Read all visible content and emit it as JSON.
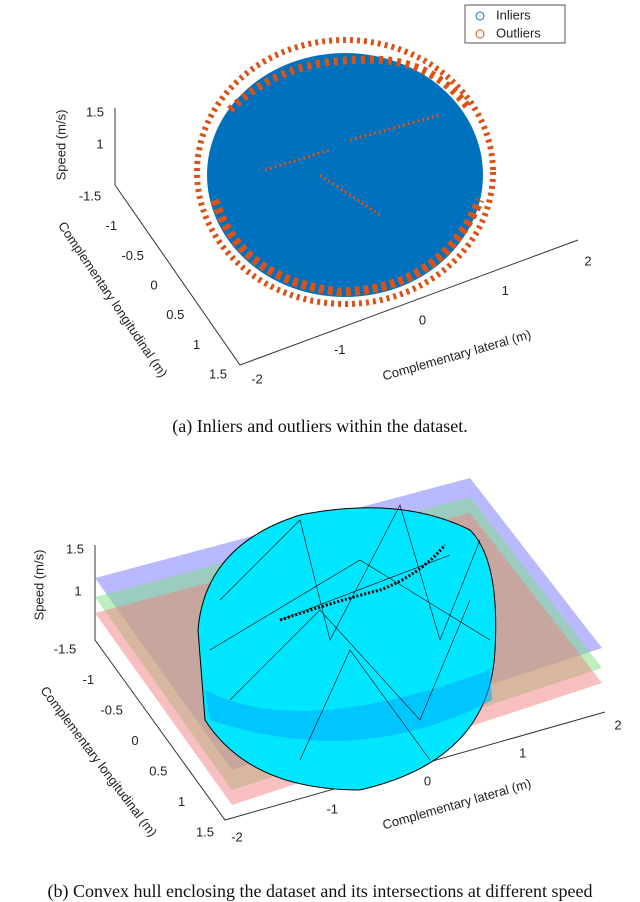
{
  "figure_a": {
    "legend": [
      "Inliers",
      "Outliers"
    ],
    "z_label": "Speed (m/s)",
    "z_ticks": [
      1.5,
      1
    ],
    "y_label": "Complementary longitudinal (m)",
    "y_ticks": [
      -1.5,
      -1,
      -0.5,
      0,
      0.5,
      1,
      1.5
    ],
    "x_label": "Complementary lateral (m)",
    "x_ticks": [
      -2,
      -1,
      0,
      1,
      2
    ],
    "caption": "(a) Inliers and outliers within the dataset."
  },
  "figure_b": {
    "z_label": "Speed (m/s)",
    "z_ticks": [
      1.5,
      1
    ],
    "y_label": "Complementary longitudinal (m)",
    "y_ticks": [
      -1.5,
      -1,
      -0.5,
      0,
      0.5,
      1,
      1.5
    ],
    "x_label": "Complementary lateral (m)",
    "x_ticks": [
      -2,
      -1,
      0,
      1,
      2
    ],
    "caption": "(b) Convex hull enclosing the dataset and its intersections at different speed"
  }
}
